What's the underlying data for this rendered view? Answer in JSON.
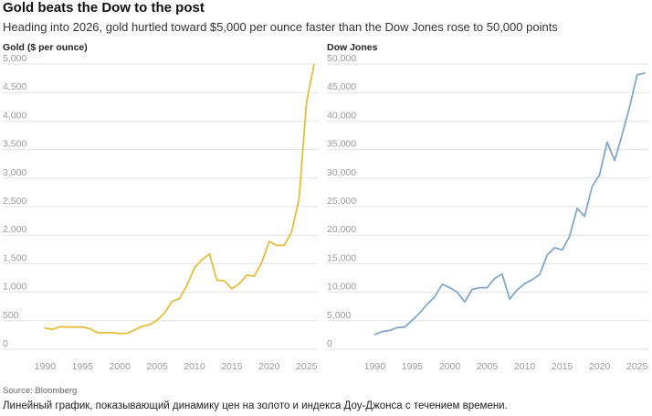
{
  "title": "Gold beats the Dow to the post",
  "subtitle": "Heading into 2026, gold hurtled toward $5,000 per ounce faster than the Dow Jones rose to 50,000 points",
  "source": "Source: Bloomberg",
  "caption": "Линейный график, показывающий динамику цен на золото и индекса Доу-Джонса с течением времени.",
  "colors": {
    "gold": "#e5be3c",
    "dow": "#7fa8cb",
    "grid": "#e2e2e2",
    "tick": "#9a9a9a"
  },
  "chart_data": [
    {
      "type": "line",
      "title": "Gold ($ per ounce)",
      "xlabel": "",
      "ylabel": "",
      "xlim": [
        1988,
        2026.5
      ],
      "ylim": [
        0,
        5000
      ],
      "x_ticks": [
        1990,
        1995,
        2000,
        2005,
        2010,
        2015,
        2020,
        2025
      ],
      "y_ticks": [
        0,
        500,
        1000,
        1500,
        2000,
        2500,
        3000,
        3500,
        4000,
        4500,
        5000
      ],
      "y_tick_labels": [
        "0",
        "500",
        "1,000",
        "1,500",
        "2,000",
        "2,500",
        "3,000",
        "3,500",
        "4,000",
        "4,500",
        "5,000"
      ],
      "series": [
        {
          "name": "Gold",
          "x": [
            1990,
            1991,
            1992,
            1993,
            1994,
            1995,
            1996,
            1997,
            1998,
            1999,
            2000,
            2001,
            2002,
            2003,
            2004,
            2005,
            2006,
            2007,
            2008,
            2009,
            2010,
            2011,
            2012,
            2013,
            2014,
            2015,
            2016,
            2017,
            2018,
            2019,
            2020,
            2021,
            2022,
            2023,
            2024,
            2025,
            2026
          ],
          "values": [
            370,
            350,
            395,
            390,
            390,
            390,
            360,
            290,
            290,
            290,
            275,
            280,
            340,
            400,
            430,
            510,
            640,
            840,
            890,
            1120,
            1430,
            1570,
            1670,
            1210,
            1200,
            1060,
            1150,
            1300,
            1280,
            1520,
            1890,
            1820,
            1820,
            2060,
            2630,
            4330,
            4990
          ]
        }
      ]
    },
    {
      "type": "line",
      "title": "Dow Jones",
      "xlabel": "",
      "ylabel": "",
      "xlim": [
        1988,
        2026.5
      ],
      "ylim": [
        0,
        50000
      ],
      "x_ticks": [
        1990,
        1995,
        2000,
        2005,
        2010,
        2015,
        2020,
        2025
      ],
      "y_ticks": [
        0,
        5000,
        10000,
        15000,
        20000,
        25000,
        30000,
        35000,
        40000,
        45000,
        50000
      ],
      "y_tick_labels": [
        "0",
        "5,000",
        "10,000",
        "15,000",
        "20,000",
        "25,000",
        "30,000",
        "35,000",
        "40,000",
        "45,000",
        "50,000"
      ],
      "series": [
        {
          "name": "Dow Jones",
          "x": [
            1990,
            1991,
            1992,
            1993,
            1994,
            1995,
            1996,
            1997,
            1998,
            1999,
            2000,
            2001,
            2002,
            2003,
            2004,
            2005,
            2006,
            2007,
            2008,
            2009,
            2010,
            2011,
            2012,
            2013,
            2014,
            2015,
            2016,
            2017,
            2018,
            2019,
            2020,
            2021,
            2022,
            2023,
            2024,
            2025,
            2026
          ],
          "values": [
            2600,
            3100,
            3300,
            3800,
            3900,
            5100,
            6400,
            7900,
            9200,
            11400,
            10800,
            10000,
            8300,
            10500,
            10800,
            10800,
            12400,
            13200,
            8800,
            10400,
            11500,
            12200,
            13100,
            16500,
            17800,
            17400,
            19800,
            24700,
            23300,
            28500,
            30600,
            36300,
            33100,
            37600,
            42500,
            48100,
            48400
          ]
        }
      ]
    }
  ]
}
